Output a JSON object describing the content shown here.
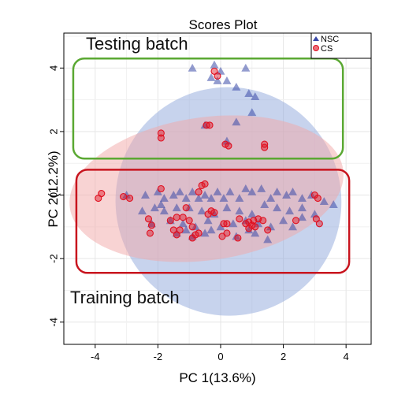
{
  "chart_data": {
    "type": "scatter",
    "title": "Scores Plot",
    "xlabel": "PC 1(13.6%)",
    "ylabel": "PC 2(12.2%)",
    "xlim": [
      -5,
      4.8
    ],
    "ylim": [
      -4.7,
      5.1
    ],
    "xticks": [
      -4,
      -2,
      0,
      2,
      4
    ],
    "yticks": [
      -4,
      -2,
      0,
      2,
      4
    ],
    "grid": true,
    "legend_position": "top-right",
    "colors": {
      "NSC": "#3a4aa8",
      "CS": "#e01020",
      "NSC_ellipse": "#8fa8dc",
      "CS_ellipse": "#f2a8a8",
      "testing_box": "#5aa832",
      "training_box": "#c8141e"
    },
    "ellipses": [
      {
        "group": "NSC",
        "cx": 0.25,
        "cy": -0.2,
        "rx": 3.6,
        "ry": 3.6,
        "angle": -12
      },
      {
        "group": "CS",
        "cx": -0.45,
        "cy": 0.2,
        "rx": 4.4,
        "ry": 2.25,
        "angle": -8
      }
    ],
    "boxes": [
      {
        "name": "Testing batch",
        "x0": -4.7,
        "x1": 3.9,
        "y0": 1.15,
        "y1": 4.3
      },
      {
        "name": "Training batch",
        "x0": -4.6,
        "x1": 4.1,
        "y0": -2.45,
        "y1": 0.8
      }
    ],
    "series": [
      {
        "name": "NSC",
        "marker": "triangle",
        "points": [
          [
            -0.9,
            4.0
          ],
          [
            -0.2,
            4.1
          ],
          [
            0.0,
            3.9
          ],
          [
            0.8,
            4.0
          ],
          [
            -0.3,
            3.7
          ],
          [
            0.2,
            3.6
          ],
          [
            0.5,
            3.4
          ],
          [
            0.9,
            3.2
          ],
          [
            1.1,
            3.1
          ],
          [
            0.5,
            2.3
          ],
          [
            -0.5,
            2.2
          ],
          [
            0.2,
            1.7
          ],
          [
            1.0,
            2.6
          ],
          [
            -0.1,
            3.6
          ],
          [
            -3.0,
            0.0
          ],
          [
            -2.4,
            0.0
          ],
          [
            -2.0,
            0.1
          ],
          [
            -1.8,
            -0.1
          ],
          [
            -1.5,
            0.0
          ],
          [
            -1.3,
            0.1
          ],
          [
            -1.1,
            -0.1
          ],
          [
            -0.9,
            0.1
          ],
          [
            -0.7,
            -0.1
          ],
          [
            -0.5,
            0.0
          ],
          [
            -0.3,
            -0.1
          ],
          [
            -0.1,
            0.1
          ],
          [
            0.1,
            -0.1
          ],
          [
            0.3,
            0.1
          ],
          [
            0.6,
            -0.1
          ],
          [
            0.8,
            0.2
          ],
          [
            1.0,
            0.1
          ],
          [
            1.3,
            0.2
          ],
          [
            1.6,
            -0.1
          ],
          [
            1.8,
            0.1
          ],
          [
            2.1,
            0.0
          ],
          [
            2.3,
            0.1
          ],
          [
            2.6,
            -0.1
          ],
          [
            2.9,
            0.0
          ],
          [
            3.3,
            -0.2
          ],
          [
            3.6,
            -0.3
          ],
          [
            -2.5,
            -0.5
          ],
          [
            -2.1,
            -0.4
          ],
          [
            -1.8,
            -0.5
          ],
          [
            -1.4,
            -0.4
          ],
          [
            -1.0,
            -0.4
          ],
          [
            -0.6,
            -0.5
          ],
          [
            -0.2,
            -0.6
          ],
          [
            0.2,
            -0.4
          ],
          [
            0.6,
            -0.5
          ],
          [
            1.0,
            -0.6
          ],
          [
            1.4,
            -0.3
          ],
          [
            1.8,
            -0.4
          ],
          [
            2.2,
            -0.5
          ],
          [
            2.6,
            -0.4
          ],
          [
            3.0,
            -0.6
          ],
          [
            -2.2,
            -0.9
          ],
          [
            -1.6,
            -0.8
          ],
          [
            -1.2,
            -0.9
          ],
          [
            -0.8,
            -1.0
          ],
          [
            -0.4,
            -0.8
          ],
          [
            0.0,
            -1.0
          ],
          [
            0.4,
            -0.9
          ],
          [
            0.8,
            -0.8
          ],
          [
            1.2,
            -0.9
          ],
          [
            1.6,
            -1.0
          ],
          [
            2.0,
            -0.8
          ],
          [
            2.3,
            -1.0
          ],
          [
            -1.4,
            -1.2
          ],
          [
            -0.9,
            -1.3
          ],
          [
            -0.5,
            -1.2
          ],
          [
            0.5,
            -1.3
          ],
          [
            1.1,
            -1.2
          ],
          [
            1.5,
            -1.4
          ],
          [
            -1.1,
            -1.1
          ],
          [
            2.6,
            -0.7
          ],
          [
            -0.3,
            -1.1
          ],
          [
            0.9,
            -1.1
          ],
          [
            -1.9,
            -0.3
          ]
        ]
      },
      {
        "name": "CS",
        "marker": "circle",
        "points": [
          [
            -0.2,
            3.9
          ],
          [
            -0.1,
            3.75
          ],
          [
            -0.45,
            2.2
          ],
          [
            -0.35,
            2.2
          ],
          [
            -1.9,
            1.95
          ],
          [
            -1.9,
            1.8
          ],
          [
            0.15,
            1.6
          ],
          [
            0.25,
            1.55
          ],
          [
            1.4,
            1.6
          ],
          [
            1.4,
            1.5
          ],
          [
            -3.9,
            -0.1
          ],
          [
            -3.8,
            0.05
          ],
          [
            -3.1,
            -0.05
          ],
          [
            -2.9,
            -0.1
          ],
          [
            -1.9,
            0.2
          ],
          [
            -0.6,
            0.3
          ],
          [
            -0.5,
            0.35
          ],
          [
            -0.7,
            0.1
          ],
          [
            -2.3,
            -0.75
          ],
          [
            -2.2,
            -0.95
          ],
          [
            -2.25,
            -1.2
          ],
          [
            -1.6,
            -0.8
          ],
          [
            -1.4,
            -0.7
          ],
          [
            -1.2,
            -0.7
          ],
          [
            -1.5,
            -1.1
          ],
          [
            -1.4,
            -1.25
          ],
          [
            -1.3,
            -1.1
          ],
          [
            -1.0,
            -0.8
          ],
          [
            -0.9,
            -1.0
          ],
          [
            -0.4,
            -0.6
          ],
          [
            -0.3,
            -0.5
          ],
          [
            -0.2,
            -0.55
          ],
          [
            0.1,
            -0.9
          ],
          [
            0.2,
            -0.9
          ],
          [
            0.6,
            -0.75
          ],
          [
            0.8,
            -0.9
          ],
          [
            0.9,
            -0.85
          ],
          [
            1.0,
            -0.95
          ],
          [
            1.05,
            -0.8
          ],
          [
            0.9,
            -1.05
          ],
          [
            1.2,
            -0.75
          ],
          [
            1.35,
            -0.8
          ],
          [
            1.1,
            -1.0
          ],
          [
            0.55,
            -1.35
          ],
          [
            0.2,
            -1.2
          ],
          [
            0.05,
            -1.3
          ],
          [
            -0.7,
            -1.2
          ],
          [
            -0.9,
            -1.35
          ],
          [
            3.0,
            0.0
          ],
          [
            3.1,
            -0.1
          ],
          [
            3.05,
            -0.75
          ],
          [
            3.15,
            -0.9
          ],
          [
            2.4,
            -0.8
          ],
          [
            -0.8,
            -1.25
          ],
          [
            1.5,
            -1.1
          ],
          [
            -1.1,
            -0.4
          ]
        ]
      }
    ]
  }
}
